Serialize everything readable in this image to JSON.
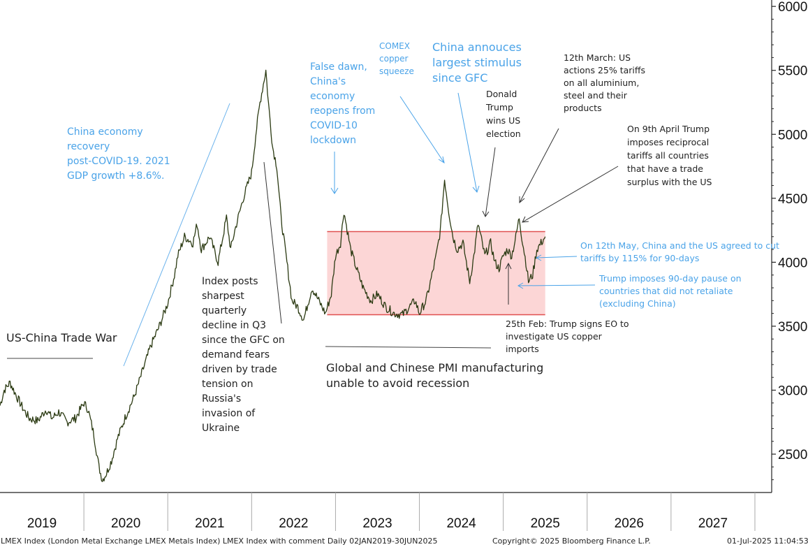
{
  "chart_data": {
    "type": "line",
    "yaxis_ticks": [
      2500,
      3000,
      3500,
      4000,
      4500,
      5000,
      5500,
      6000
    ],
    "yaxis_tick_labels": [
      "2500",
      "3000",
      "3500",
      "4000",
      "4500",
      "5000",
      "5500",
      "6000"
    ],
    "ylim": [
      2200,
      6050
    ],
    "xlim": [
      2019.0,
      2028.2
    ],
    "years": [
      "2019",
      "2020",
      "2021",
      "2022",
      "2023",
      "2024",
      "2025",
      "2026",
      "2027"
    ],
    "year_starts": [
      2019,
      2020,
      2021,
      2022,
      2023,
      2024,
      2025,
      2026,
      2027,
      2028
    ],
    "range_band": {
      "low": 3590,
      "high": 4240,
      "from": 2022.9,
      "to": 2025.5
    },
    "series": [
      {
        "color": "#2b3a12",
        "x": [
          2019.0,
          2019.05,
          2019.12,
          2019.2,
          2019.28,
          2019.35,
          2019.45,
          2019.55,
          2019.62,
          2019.7,
          2019.8,
          2019.9,
          2020.0,
          2020.05,
          2020.12,
          2020.18,
          2020.22,
          2020.27,
          2020.33,
          2020.4,
          2020.5,
          2020.6,
          2020.7,
          2020.8,
          2020.9,
          2021.0,
          2021.08,
          2021.12,
          2021.2,
          2021.3,
          2021.35,
          2021.4,
          2021.5,
          2021.6,
          2021.7,
          2021.75,
          2021.8,
          2021.9,
          2022.0,
          2022.05,
          2022.1,
          2022.17,
          2022.2,
          2022.25,
          2022.3,
          2022.35,
          2022.42,
          2022.48,
          2022.55,
          2022.62,
          2022.68,
          2022.72,
          2022.8,
          2022.88,
          2022.95,
          2023.0,
          2023.06,
          2023.1,
          2023.18,
          2023.25,
          2023.33,
          2023.42,
          2023.5,
          2023.6,
          2023.7,
          2023.8,
          2023.88,
          2023.95,
          2024.0,
          2024.08,
          2024.15,
          2024.2,
          2024.25,
          2024.3,
          2024.35,
          2024.4,
          2024.45,
          2024.52,
          2024.6,
          2024.65,
          2024.7,
          2024.78,
          2024.85,
          2024.9,
          2024.95,
          2025.0,
          2025.05,
          2025.1,
          2025.15,
          2025.19,
          2025.22,
          2025.27,
          2025.3,
          2025.35,
          2025.4,
          2025.45,
          2025.5
        ],
        "y": [
          2880,
          3000,
          3060,
          2950,
          2850,
          2780,
          2760,
          2850,
          2780,
          2830,
          2750,
          2780,
          2900,
          2850,
          2650,
          2400,
          2300,
          2350,
          2450,
          2620,
          2800,
          2950,
          3150,
          3350,
          3500,
          3680,
          3900,
          4050,
          4200,
          4150,
          4300,
          4100,
          4200,
          4000,
          4350,
          4100,
          4250,
          4500,
          4700,
          5000,
          5250,
          5500,
          5250,
          4900,
          4750,
          4350,
          4000,
          3700,
          3650,
          3550,
          3700,
          3800,
          3700,
          3600,
          3750,
          4050,
          4150,
          4400,
          4100,
          3950,
          3800,
          3700,
          3750,
          3650,
          3600,
          3590,
          3650,
          3700,
          3600,
          3700,
          3900,
          4050,
          4250,
          4650,
          4400,
          4200,
          4100,
          4150,
          3850,
          4050,
          4300,
          4050,
          4150,
          4000,
          3950,
          4050,
          4100,
          4050,
          4200,
          4350,
          4200,
          4000,
          3850,
          3900,
          4100,
          4150,
          4200
        ]
      }
    ],
    "annotations": {
      "trade_war": "US-China Trade War",
      "recovery": [
        "China economy",
        "recovery",
        "post-COVID-19. 2021",
        "GDP growth +8.6%."
      ],
      "index_decline": [
        "Index posts",
        "sharpest",
        "quarterly",
        "decline in Q3",
        "since the GFC on",
        "demand fears",
        "driven by trade",
        "tension on",
        "Russia's",
        "invasion of",
        "Ukraine"
      ],
      "false_dawn": [
        "False dawn,",
        "China's",
        "economy",
        "reopens from",
        "COVID-10",
        "lockdown"
      ],
      "comex": [
        "COMEX",
        "copper",
        "squeeze"
      ],
      "stimulus": [
        "China annouces",
        "largest stimulus",
        "since GFC"
      ],
      "trump_wins": [
        "Donald",
        "Trump",
        "wins US",
        "election"
      ],
      "march_tariffs": [
        "12th March: US",
        "actions 25% tariffs",
        "on all aluminium,",
        "steel and their",
        "products"
      ],
      "april_tariffs": [
        "On 9th April Trump",
        "imposes reciprocal",
        "tariffs all countries",
        "that have a trade",
        "surplus with the US"
      ],
      "may_cut": [
        "On 12th May, China and the US agreed to cut",
        "tariffs by 115% for 90-days"
      ],
      "pause": [
        "Trump imposes 90-day pause on",
        "countries that did not retaliate",
        "(excluding China)"
      ],
      "feb_eo": [
        "25th Feb: Trump signs EO to",
        "investigate US copper",
        "imports"
      ],
      "pmi": [
        "Global and Chinese PMI manufacturing",
        "unable to avoid recession"
      ]
    }
  },
  "footer": {
    "left": "LMEX Index (London Metal Exchange LMEX Metals Index) LMEX Index with comment  Daily 02JAN2019-30JUN2025",
    "center": "Copyright© 2025 Bloomberg Finance L.P.",
    "right": "01-Jul-2025 11:04:53"
  },
  "colors": {
    "line": "#2b3a12",
    "band_fill": "#fcd6d6",
    "band_edge": "#e05050",
    "annotation_blue": "#4aa3e8",
    "annotation_dark": "#222222"
  }
}
